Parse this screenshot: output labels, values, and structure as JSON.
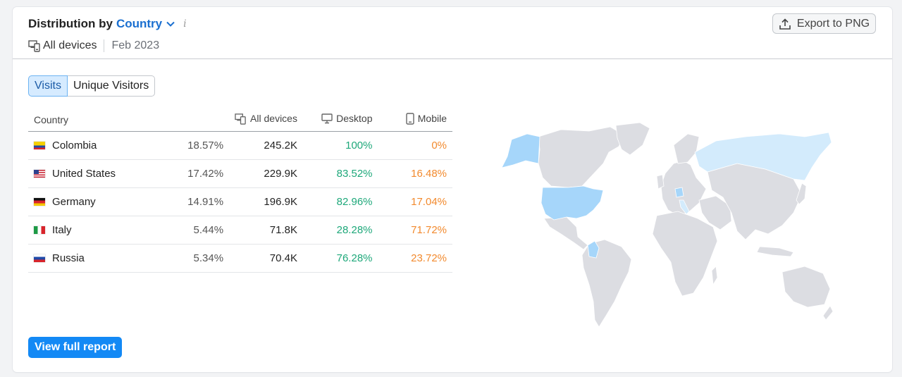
{
  "header": {
    "title_prefix": "Distribution by",
    "title_selector": "Country",
    "info_icon": "i",
    "device_label": "All devices",
    "date_label": "Feb 2023",
    "export_label": "Export to PNG"
  },
  "toggle": {
    "options": [
      "Visits",
      "Unique Visitors"
    ],
    "active": "Visits"
  },
  "table": {
    "columns": {
      "country": "Country",
      "all": "All devices",
      "desktop": "Desktop",
      "mobile": "Mobile"
    },
    "rows": [
      {
        "country": "Colombia",
        "share": "18.57%",
        "all": "245.2K",
        "desktop": "100%",
        "mobile": "0%"
      },
      {
        "country": "United States",
        "share": "17.42%",
        "all": "229.9K",
        "desktop": "83.52%",
        "mobile": "16.48%"
      },
      {
        "country": "Germany",
        "share": "14.91%",
        "all": "196.9K",
        "desktop": "82.96%",
        "mobile": "17.04%"
      },
      {
        "country": "Italy",
        "share": "5.44%",
        "all": "71.8K",
        "desktop": "28.28%",
        "mobile": "71.72%"
      },
      {
        "country": "Russia",
        "share": "5.34%",
        "all": "70.4K",
        "desktop": "76.28%",
        "mobile": "23.72%"
      }
    ]
  },
  "footer": {
    "full_report_label": "View full report"
  },
  "colors": {
    "accent": "#1389f5",
    "desktop": "#1ea87a",
    "mobile": "#f28a2e",
    "map_base": "#dcdde2",
    "map_light": "#d3ebfc",
    "map_strong": "#a6d6fa"
  },
  "icons": [
    "chevron-down-icon",
    "info-icon",
    "devices-icon",
    "export-icon",
    "desktop-icon",
    "mobile-icon",
    "flag-colombia-icon",
    "flag-united-states-icon",
    "flag-germany-icon",
    "flag-italy-icon",
    "flag-russia-icon"
  ]
}
